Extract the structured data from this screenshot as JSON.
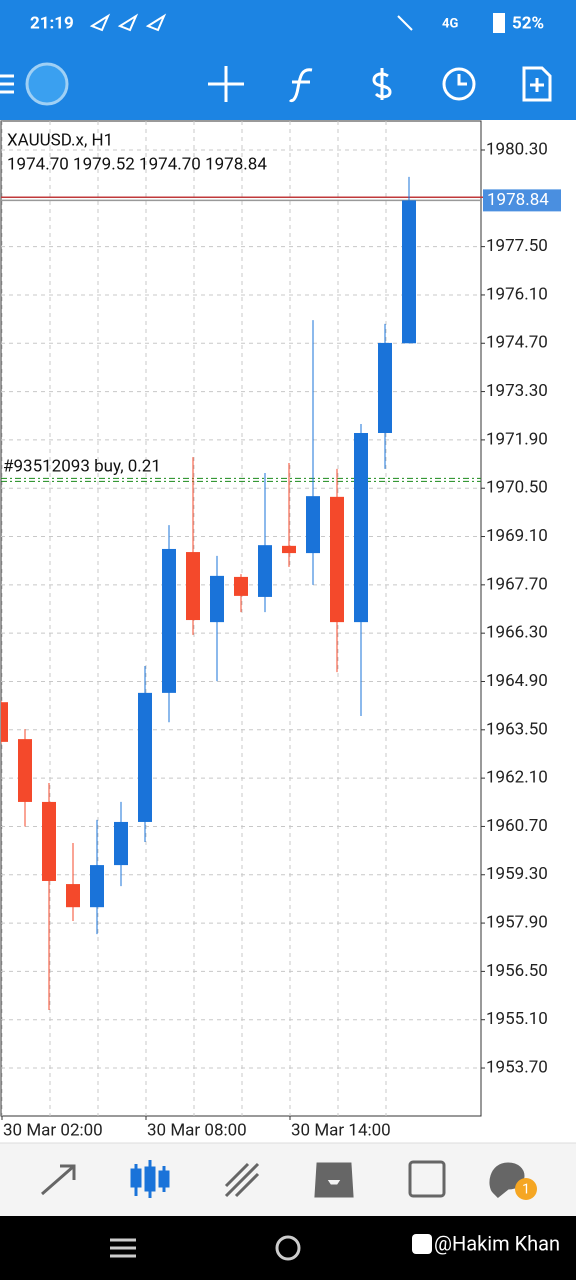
{
  "status_bar": {
    "time": "21:19",
    "network": "4G",
    "battery": "52%"
  },
  "chart_data": {
    "type": "candlestick",
    "title": "XAUUSD.x, H1",
    "subtitle": "1974.70 1979.52 1974.70 1978.84",
    "categories": [
      "30 Mar 02:00",
      null,
      null,
      null,
      null,
      null,
      "30 Mar 08:00",
      null,
      null,
      null,
      null,
      null,
      "30 Mar 14:00",
      null,
      null,
      null,
      null,
      null
    ],
    "open": [
      1964.3,
      1963.23,
      1961.41,
      1959.03,
      1958.36,
      1959.58,
      1960.83,
      1964.57,
      1968.65,
      1966.62,
      1967.93,
      1967.35,
      1968.83,
      1968.62,
      1970.25,
      1966.62,
      1972.1,
      1974.7
    ],
    "high": [
      1964.35,
      1963.52,
      1961.96,
      1960.22,
      1960.89,
      1961.41,
      1965.35,
      1969.43,
      1971.4,
      1968.54,
      1968.01,
      1970.94,
      1971.23,
      1975.37,
      1971.06,
      1972.36,
      1975.26,
      1979.52
    ],
    "low": [
      1963.1,
      1960.7,
      1955.38,
      1957.96,
      1957.58,
      1958.97,
      1960.25,
      1963.72,
      1966.25,
      1964.91,
      1966.91,
      1966.91,
      1968.22,
      1967.7,
      1965.17,
      1963.9,
      1971.06,
      1974.7
    ],
    "close": [
      1963.15,
      1961.41,
      1959.12,
      1958.36,
      1959.58,
      1960.83,
      1964.57,
      1968.74,
      1966.68,
      1967.96,
      1967.38,
      1968.85,
      1968.62,
      1970.27,
      1966.62,
      1972.1,
      1974.71,
      1978.84
    ],
    "up_color": "#1a73d9",
    "down_color": "#f4492b",
    "ylim": [
      1952.31,
      1981.14
    ],
    "yticks": [
      {
        "value": 1980.3,
        "label": "1980.30"
      },
      {
        "value": 1977.5,
        "label": "1977.50"
      },
      {
        "value": 1976.1,
        "label": "1976.10"
      },
      {
        "value": 1974.7,
        "label": "1974.70"
      },
      {
        "value": 1973.3,
        "label": "1973.30"
      },
      {
        "value": 1971.9,
        "label": "1971.90"
      },
      {
        "value": 1970.5,
        "label": "1970.50"
      },
      {
        "value": 1969.1,
        "label": "1969.10"
      },
      {
        "value": 1967.7,
        "label": "1967.70"
      },
      {
        "value": 1966.3,
        "label": "1966.30"
      },
      {
        "value": 1964.9,
        "label": "1964.90"
      },
      {
        "value": 1963.5,
        "label": "1963.50"
      },
      {
        "value": 1962.1,
        "label": "1962.10"
      },
      {
        "value": 1960.7,
        "label": "1960.70"
      },
      {
        "value": 1959.3,
        "label": "1959.30"
      },
      {
        "value": 1957.9,
        "label": "1957.90"
      },
      {
        "value": 1956.5,
        "label": "1956.50"
      },
      {
        "value": 1955.1,
        "label": "1955.10"
      },
      {
        "value": 1953.7,
        "label": "1953.70"
      }
    ],
    "grid": true,
    "ask_line": 1978.93,
    "current_price": {
      "value": 1978.84,
      "label": "1978.84"
    },
    "order": {
      "label": "#93512093 buy, 0.21",
      "price": 1970.74
    }
  },
  "bottom_nav": {
    "chat_badge": "1"
  },
  "watermark": "@Hakim Khan"
}
